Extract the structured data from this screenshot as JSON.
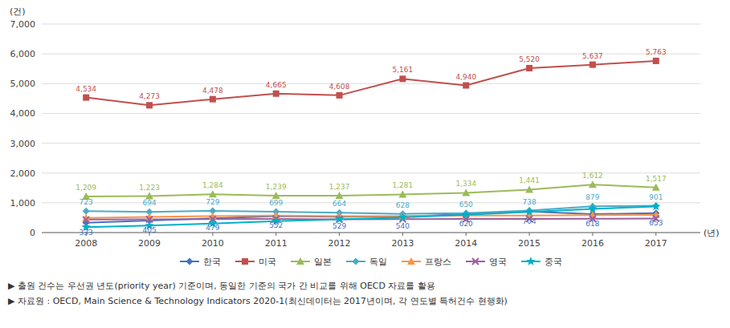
{
  "chart_data": {
    "type": "line",
    "x": [
      2008,
      2009,
      2010,
      2011,
      2012,
      2013,
      2014,
      2015,
      2016,
      2017
    ],
    "xlim": [
      2007.3,
      2017.7
    ],
    "xticks": [
      2008,
      2009,
      2010,
      2011,
      2012,
      2013,
      2014,
      2015,
      2016,
      2017
    ],
    "ylim": [
      0,
      7000
    ],
    "yticks": [
      0,
      {
        "value": 1000,
        "label": "1,000"
      },
      {
        "value": 2000,
        "label": "2,000"
      },
      {
        "value": 3000,
        "label": "3,000"
      },
      {
        "value": 4000,
        "label": "4,000"
      },
      {
        "value": 5000,
        "label": "5,000"
      },
      {
        "value": 6000,
        "label": "6,000"
      },
      {
        "value": 7000,
        "label": "7,000"
      }
    ],
    "ylabel": "(건)",
    "xlabel": "(년)",
    "grid": true,
    "legend": "bottom",
    "series": [
      {
        "name": "한국",
        "color": "#4472C4",
        "marker": "diamond",
        "data_labels": true,
        "values": [
          333,
          405,
          479,
          552,
          529,
          540,
          620,
          704,
          618,
          653
        ]
      },
      {
        "name": "미국",
        "color": "#C0504D",
        "marker": "square",
        "data_labels": true,
        "values": [
          4534,
          4273,
          4478,
          4665,
          4608,
          5161,
          4940,
          5520,
          5637,
          5763
        ],
        "value_labels": [
          "4,534",
          "4,273",
          "4,478",
          "4,665",
          "4,608",
          "5,161",
          "4,940",
          "5,520",
          "5,637",
          "5,763"
        ]
      },
      {
        "name": "일본",
        "color": "#9BBB59",
        "marker": "triangle",
        "data_labels": true,
        "values": [
          1209,
          1223,
          1284,
          1239,
          1237,
          1281,
          1334,
          1441,
          1612,
          1517
        ],
        "value_labels": [
          "1,209",
          "1,223",
          "1,284",
          "1,239",
          "1,237",
          "1,281",
          "1,334",
          "1,441",
          "1,612",
          "1,517"
        ]
      },
      {
        "name": "독일",
        "color": "#4BACC6",
        "marker": "diamond",
        "data_labels": true,
        "values": [
          723,
          694,
          729,
          699,
          664,
          628,
          650,
          738,
          879,
          901
        ]
      },
      {
        "name": "프랑스",
        "color": "#F79646",
        "marker": "triangle",
        "data_labels": false,
        "values": [
          490,
          525,
          555,
          575,
          555,
          555,
          572,
          575,
          585,
          595
        ]
      },
      {
        "name": "영국",
        "color": "#9E5FA0",
        "marker": "x",
        "data_labels": false,
        "values": [
          435,
          445,
          450,
          455,
          445,
          450,
          455,
          460,
          465,
          470
        ]
      },
      {
        "name": "중국",
        "color": "#00B0C8",
        "marker": "star",
        "data_labels": false,
        "values": [
          185,
          235,
          305,
          385,
          445,
          508,
          600,
          695,
          795,
          875
        ]
      }
    ],
    "annotations": [
      "▶ 출원 건수는 우선권 년도(priority year) 기준이며, 동일한 기준의 국가 간 비교를 위해 OECD 자료를 활용",
      "▶ 자료원 : OECD, Main Science & Technology Indicators 2020-1(최신데이터는 2017년이며, 각 연도별 특허건수 현행화)"
    ]
  }
}
